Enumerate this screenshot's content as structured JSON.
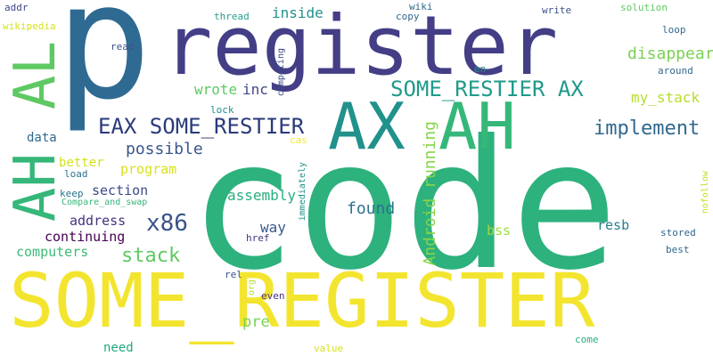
{
  "words": [
    {
      "text": "p",
      "color": "#2f6a92"
    },
    {
      "text": "code",
      "color": "#2db17d"
    },
    {
      "text": "register",
      "color": "#433e85"
    },
    {
      "text": "SOME_REGISTER",
      "color": "#f3e52f"
    },
    {
      "text": "AX",
      "color": "#21918c"
    },
    {
      "text": "AH",
      "color": "#35b779"
    },
    {
      "text": "AL",
      "color": "#5ec962"
    },
    {
      "text": "AH",
      "color": "#35b779"
    },
    {
      "text": "EAX SOME_RESTIER",
      "color": "#2a3b7a"
    },
    {
      "text": "SOME_RESTIER AX",
      "color": "#1f9a8a"
    },
    {
      "text": "implement",
      "color": "#31688e"
    },
    {
      "text": "disappear",
      "color": "#7ad151"
    },
    {
      "text": "my_stack",
      "color": "#b5de2b"
    },
    {
      "text": "x86",
      "color": "#3b528b"
    },
    {
      "text": "stack",
      "color": "#5ec962"
    },
    {
      "text": "found",
      "color": "#2c728e"
    },
    {
      "text": "Android running",
      "color": "#86d549"
    },
    {
      "text": "possible",
      "color": "#39568c"
    },
    {
      "text": "wrote",
      "color": "#5ec962"
    },
    {
      "text": "inc",
      "color": "#404688"
    },
    {
      "text": "inside",
      "color": "#21918c"
    },
    {
      "text": "assembly",
      "color": "#29af7f"
    },
    {
      "text": "section",
      "color": "#3e4a89"
    },
    {
      "text": "program",
      "color": "#d8e219"
    },
    {
      "text": "better",
      "color": "#d2e21b"
    },
    {
      "text": "data",
      "color": "#31688e"
    },
    {
      "text": "address",
      "color": "#46327e"
    },
    {
      "text": "continuing",
      "color": "#440154"
    },
    {
      "text": "computers",
      "color": "#3cbb75"
    },
    {
      "text": "way",
      "color": "#38598c"
    },
    {
      "text": "bss",
      "color": "#9fda3a"
    },
    {
      "text": "resb",
      "color": "#287d8e"
    },
    {
      "text": "pre",
      "color": "#7ad151"
    },
    {
      "text": "need",
      "color": "#22a884"
    },
    {
      "text": "solution",
      "color": "#5ec962"
    },
    {
      "text": "thread",
      "color": "#2a9d8f"
    },
    {
      "text": "wiki",
      "color": "#31688e"
    },
    {
      "text": "write",
      "color": "#3b528b"
    },
    {
      "text": "copy",
      "color": "#31688e"
    },
    {
      "text": "loop",
      "color": "#31688e"
    },
    {
      "text": "read",
      "color": "#3b528b"
    },
    {
      "text": "en",
      "color": "#21918c"
    },
    {
      "text": "around",
      "color": "#31688e"
    },
    {
      "text": "addr",
      "color": "#404688"
    },
    {
      "text": "wikipedia",
      "color": "#d8e219"
    },
    {
      "text": "lock",
      "color": "#21918c"
    },
    {
      "text": "competing",
      "color": "#3e4a89"
    },
    {
      "text": "cas",
      "color": "#f3e52f"
    },
    {
      "text": "load",
      "color": "#2c728e"
    },
    {
      "text": "keep",
      "color": "#2c728e"
    },
    {
      "text": "Compare_and_swap",
      "color": "#35b779"
    },
    {
      "text": "immediately",
      "color": "#21918c"
    },
    {
      "text": "href",
      "color": "#46327e"
    },
    {
      "text": "nofollow",
      "color": "#c2df23"
    },
    {
      "text": "stored",
      "color": "#31688e"
    },
    {
      "text": "best",
      "color": "#31688e"
    },
    {
      "text": "rel",
      "color": "#3b528b"
    },
    {
      "text": "org",
      "color": "#b5de2b"
    },
    {
      "text": "even",
      "color": "#46327e"
    },
    {
      "text": "value",
      "color": "#d8e219"
    },
    {
      "text": "come",
      "color": "#29af7f"
    }
  ]
}
